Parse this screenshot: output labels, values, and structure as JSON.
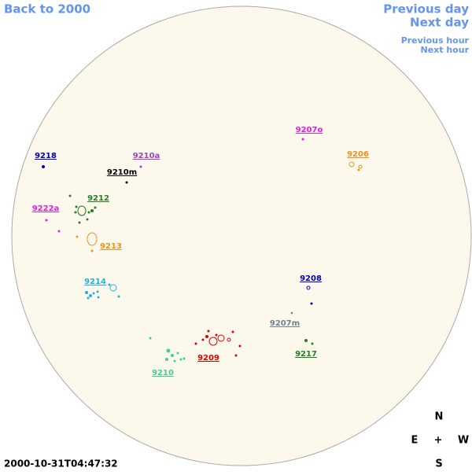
{
  "nav": {
    "back": "Back to 2000",
    "previous_day": "Previous day",
    "next_day": "Next day",
    "previous_hour": "Previous hour",
    "next_hour": "Next hour"
  },
  "regions": [
    {
      "label": "9207o",
      "color": "#e020e0"
    },
    {
      "label": "9206",
      "color": "#f09020"
    },
    {
      "label": "9218",
      "color": "#0000c0"
    },
    {
      "label": "9210a",
      "color": "#a040c0"
    },
    {
      "label": "9210m",
      "color": "#000000"
    },
    {
      "label": "9212",
      "color": "#208020"
    },
    {
      "label": "9222a",
      "color": "#e020e0"
    },
    {
      "label": "9213",
      "color": "#f09020"
    },
    {
      "label": "9214",
      "color": "#20b0e0"
    },
    {
      "label": "9208",
      "color": "#0000c0"
    },
    {
      "label": "9207m",
      "color": "#708090"
    },
    {
      "label": "9209",
      "color": "#e00000"
    },
    {
      "label": "9217",
      "color": "#208020"
    },
    {
      "label": "9210",
      "color": "#40d090"
    }
  ],
  "compass": {
    "north": "N",
    "east": "E",
    "center": "+",
    "west": "W",
    "south": "S"
  },
  "timestamp": "2000-10-31T04:47:32"
}
